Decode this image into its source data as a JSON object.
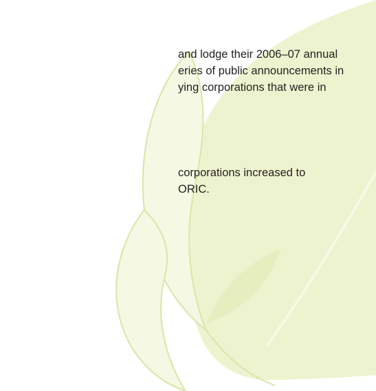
{
  "document": {
    "paragraphs": [
      {
        "lines": [
          "and lodge their 2006–07 annual",
          "eries of public announcements in",
          "ying corporations that were in"
        ]
      },
      {
        "lines": [
          "corporations increased to",
          "ORIC."
        ]
      }
    ]
  },
  "colors": {
    "text": "#231f20",
    "leaf_fill": "#eef3cf",
    "leaf_outline": "#d9e6a6",
    "background": "#ffffff"
  },
  "decoration": {
    "icon": "leaf-watermark"
  }
}
